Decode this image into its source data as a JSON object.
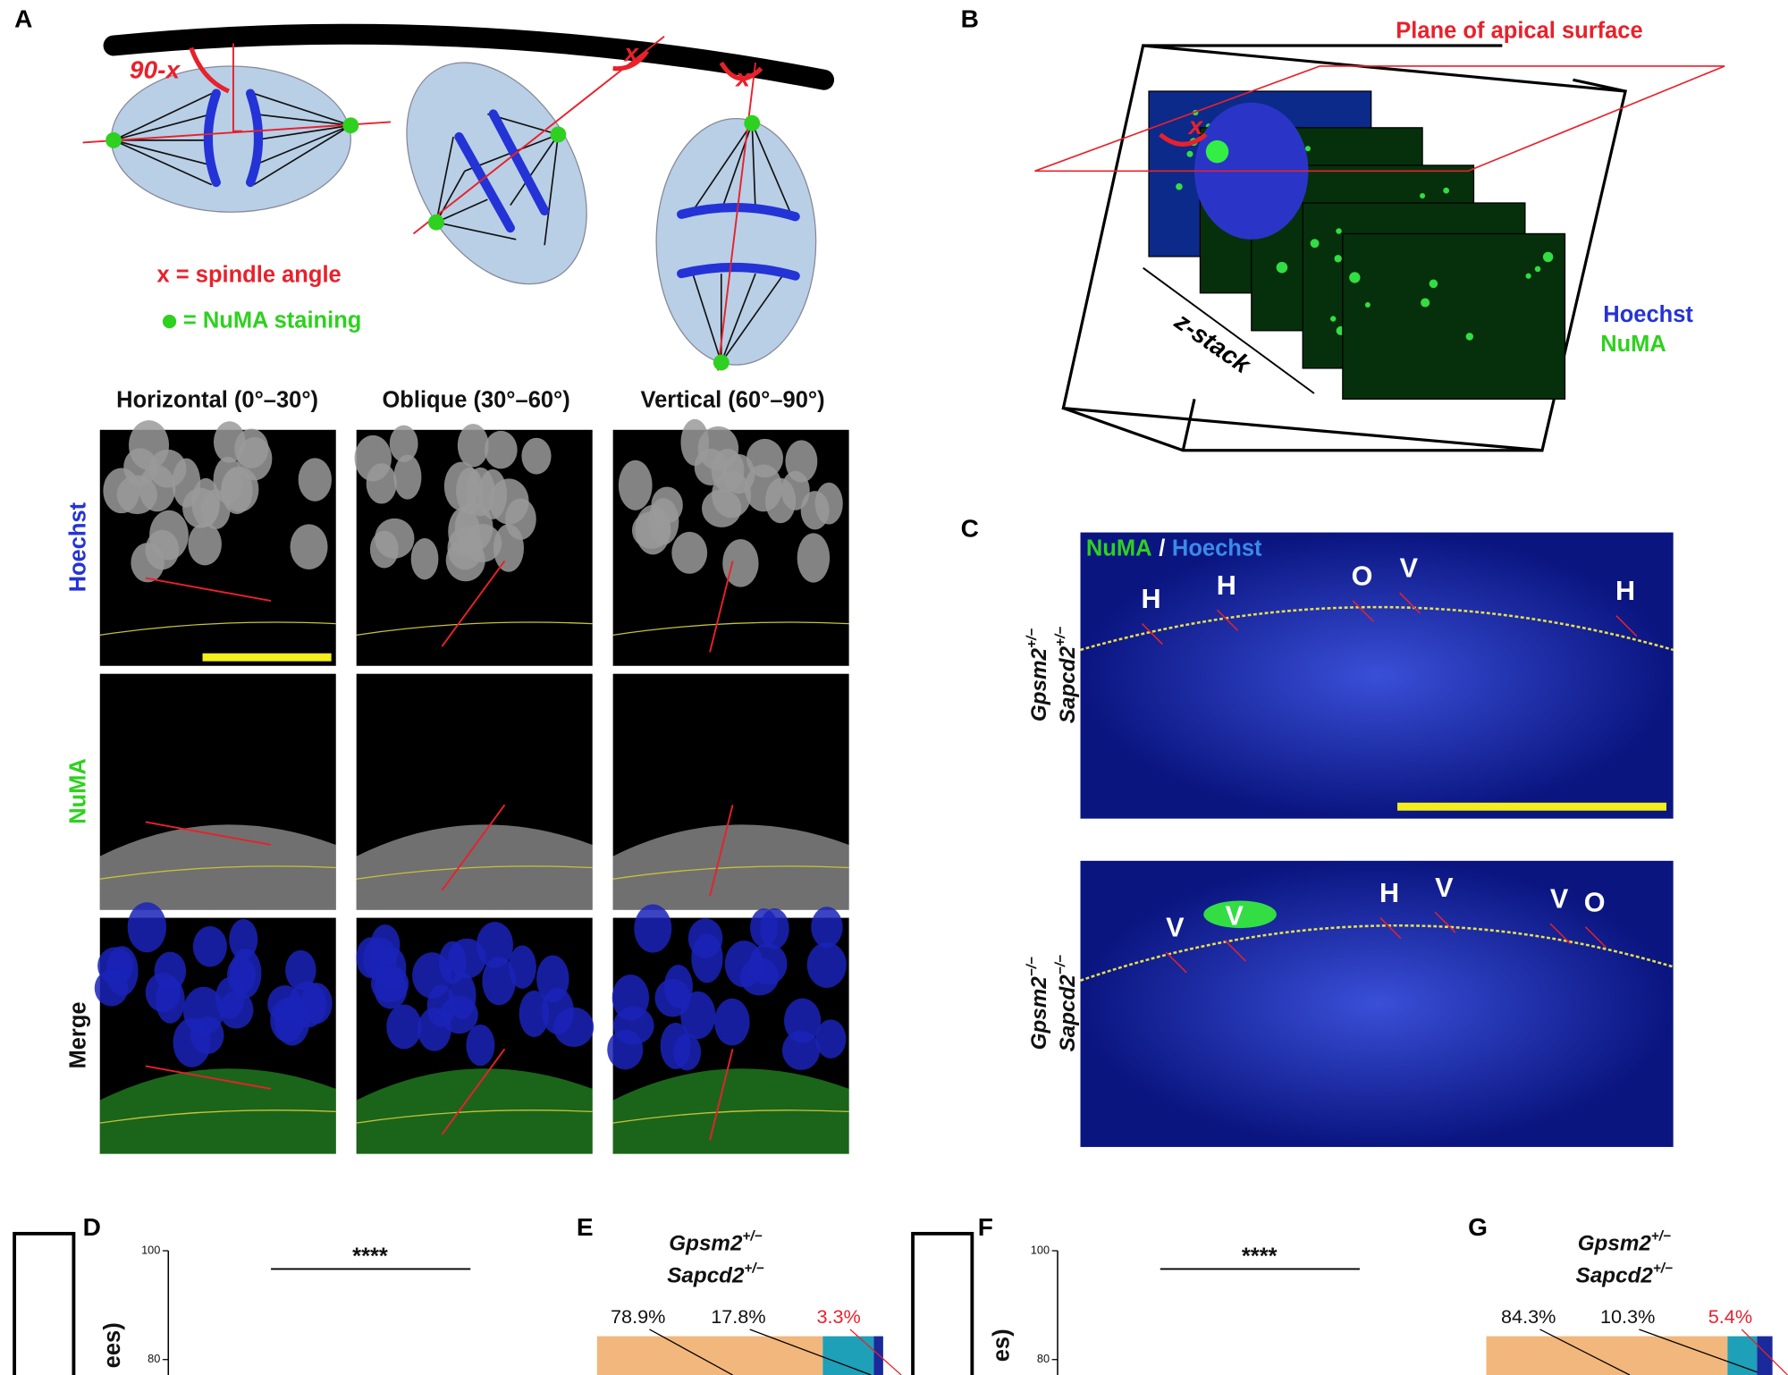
{
  "panels": [
    "A",
    "B",
    "C",
    "D",
    "E",
    "F",
    "G"
  ],
  "panel_a": {
    "angle_label": "90-x",
    "x_label": "x",
    "legend": [
      "x = spindle angle",
      "= NuMA staining"
    ],
    "columns": [
      "Horizontal (0°–30°)",
      "Oblique (30°–60°)",
      "Vertical (60°–90°)"
    ],
    "rows": [
      "Hoechst",
      "NuMA",
      "Merge"
    ]
  },
  "panel_b": {
    "plane_label": "Plane of apical surface",
    "angle": "x",
    "stack_label": "z-stack",
    "channels": [
      "Hoechst",
      "NuMA"
    ]
  },
  "panel_c": {
    "legend": [
      "NuMA",
      "/",
      "Hoechst"
    ],
    "genotypes": [
      [
        {
          "gene": "Gpsm2",
          "allele": "+/−"
        },
        {
          "gene": "Sapcd2",
          "allele": "+/−"
        }
      ],
      [
        {
          "gene": "Gpsm2",
          "allele": "−/−"
        },
        {
          "gene": "Sapcd2",
          "allele": "−/−"
        }
      ]
    ],
    "marks": [
      [
        "H",
        "H",
        "O",
        "V",
        "H"
      ],
      [
        "V",
        "V",
        "H",
        "V",
        "V",
        "O"
      ]
    ]
  },
  "panel_d": {
    "ylabel": "ees)",
    "significance": "****",
    "ylim": [
      78,
      100
    ],
    "yticks": [
      80,
      100
    ]
  },
  "panel_e": {
    "title": [
      {
        "gene": "Gpsm2",
        "allele": "+/−"
      },
      {
        "gene": "Sapcd2",
        "allele": "+/−"
      }
    ],
    "values": [
      78.9,
      17.8,
      3.3
    ],
    "value_labels": [
      "78.9%",
      "17.8%",
      "3.3%"
    ],
    "colors": [
      "#f2b77c",
      "#1ea0b8",
      "#1a2a9a"
    ]
  },
  "panel_f": {
    "ylabel": "es)",
    "significance": "****",
    "ylim": [
      78,
      100
    ],
    "yticks": [
      80,
      100
    ]
  },
  "panel_g": {
    "title": [
      {
        "gene": "Gpsm2",
        "allele": "+/−"
      },
      {
        "gene": "Sapcd2",
        "allele": "+/−"
      }
    ],
    "values": [
      84.3,
      10.3,
      5.4
    ],
    "value_labels": [
      "84.3%",
      "10.3%",
      "5.4%"
    ],
    "colors": [
      "#f2b77c",
      "#1ea0b8",
      "#1a2a9a"
    ]
  }
}
